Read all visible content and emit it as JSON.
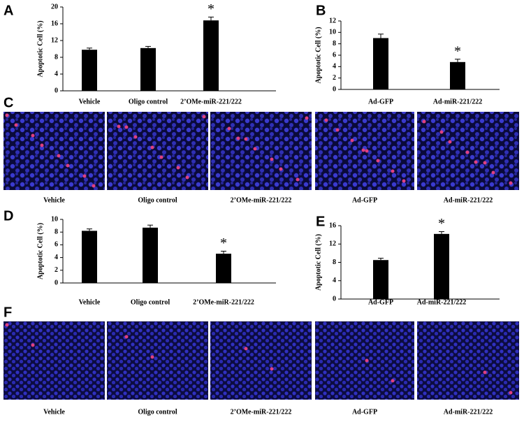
{
  "chart_data": [
    {
      "type": "bar",
      "panel": "A",
      "y_label": "Apoptotic Cell (%)",
      "categories": [
        "Vehicle",
        "Oligo control",
        "2’OMe-miR-221/222"
      ],
      "values": [
        9.8,
        10.2,
        16.8
      ],
      "errors": [
        0.4,
        0.4,
        0.8
      ],
      "color": "#000000",
      "ylim": [
        0,
        20
      ],
      "yticks": [
        0,
        4,
        8,
        12,
        16,
        20
      ],
      "annotation": {
        "text": "*",
        "category": "2’OMe-miR-221/222"
      }
    },
    {
      "type": "bar",
      "panel": "B",
      "y_label": "Apoptotic Cell (%)",
      "categories": [
        "Ad-GFP",
        "Ad-miR-221/222"
      ],
      "values": [
        9.0,
        4.8
      ],
      "errors": [
        0.7,
        0.5
      ],
      "color": "#000000",
      "ylim": [
        0,
        12
      ],
      "yticks": [
        0,
        2,
        4,
        6,
        8,
        10,
        12
      ],
      "annotation": {
        "text": "*",
        "category": "Ad-miR-221/222"
      }
    },
    {
      "type": "bar",
      "panel": "D",
      "y_label": "Apoptotic Cell (%)",
      "categories": [
        "Vehicle",
        "Oligo control",
        "2’OMe-miR-221/222"
      ],
      "values": [
        8.2,
        8.7,
        4.6
      ],
      "errors": [
        0.3,
        0.4,
        0.4
      ],
      "color": "#000000",
      "ylim": [
        0,
        10
      ],
      "yticks": [
        0,
        2,
        4,
        6,
        8,
        10
      ],
      "annotation": {
        "text": "*",
        "category": "2’OMe-miR-221/222"
      }
    },
    {
      "type": "bar",
      "panel": "E",
      "y_label": "Apoptotic Cell (%)",
      "categories": [
        "Ad-GFP",
        "Ad-miR-221/222"
      ],
      "values": [
        8.5,
        14.2
      ],
      "errors": [
        0.4,
        0.5
      ],
      "color": "#000000",
      "ylim": [
        0,
        16
      ],
      "yticks": [
        0,
        4,
        8,
        12,
        16
      ],
      "annotation": {
        "text": "*",
        "category": "Ad-miR-221/222"
      }
    }
  ],
  "image_panels": [
    {
      "panel": "C",
      "captions": [
        "Vehicle",
        "Oligo control",
        "2’OMe-miR-221/222",
        "Ad-GFP",
        "Ad-miR-221/222"
      ]
    },
    {
      "panel": "F",
      "captions": [
        "Vehicle",
        "Oligo control",
        "2’OMe-miR-221/222",
        "Ad-GFP",
        "Ad-miR-221/222"
      ]
    }
  ]
}
